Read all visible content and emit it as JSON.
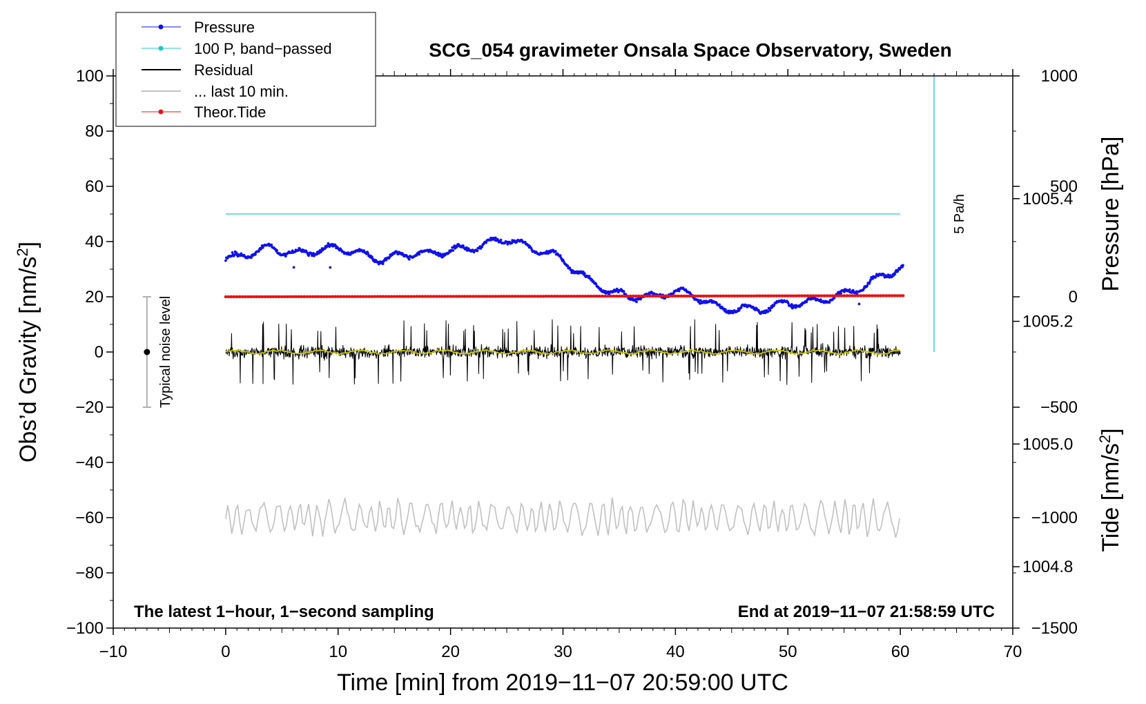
{
  "chart_data": {
    "type": "line",
    "title": "SCG_054 gravimeter Onsala Space Observatory, Sweden",
    "xlabel": "Time [min] from 2019−11−07 20:59:00 UTC",
    "xlim": [
      -10,
      70
    ],
    "x_ticks": [
      -10,
      0,
      10,
      20,
      30,
      40,
      50,
      60,
      70
    ],
    "x_tick_labels": [
      "−10",
      "0",
      "10",
      "20",
      "30",
      "40",
      "50",
      "60",
      "70"
    ],
    "y_left": {
      "label": "Obs’d Gravity [nm/s",
      "label_sup": "2",
      "label_end": "]",
      "lim": [
        -100,
        100
      ],
      "ticks": [
        -100,
        -80,
        -60,
        -40,
        -20,
        0,
        20,
        40,
        60,
        80,
        100
      ],
      "tick_labels": [
        "−100",
        "−80",
        "−60",
        "−40",
        "−20",
        "0",
        "20",
        "40",
        "60",
        "80",
        "100"
      ]
    },
    "y_right_pressure": {
      "label": "Pressure [hPa]",
      "lim": [
        1004.7,
        1005.6
      ],
      "ticks": [
        1004.8,
        1005.0,
        1005.2,
        1005.4
      ],
      "tick_labels": [
        "1004.8",
        "1005.0",
        "1005.2",
        "1005.4"
      ]
    },
    "y_right_tide": {
      "label": "Tide [nm/s",
      "label_sup": "2",
      "label_end": "]",
      "lim": [
        -1500,
        1000
      ],
      "ticks": [
        -1500,
        -1000,
        -500,
        0,
        500,
        1000
      ],
      "tick_labels": [
        "−1500",
        "−1000",
        "−500",
        "0",
        "500",
        "1000"
      ]
    },
    "legend_position": "top-left",
    "legend": [
      {
        "label": "Pressure",
        "color": "#1010ee",
        "marker": "dot"
      },
      {
        "label": "100 P, band−passed",
        "color": "#20c8c8",
        "marker": "dot"
      },
      {
        "label": "Residual",
        "color": "#000000",
        "marker": "line"
      },
      {
        "label": "... last 10 min.",
        "color": "#c0c0c0",
        "marker": "line"
      },
      {
        "label": "Theor.Tide",
        "color": "#ee1010",
        "marker": "dot"
      }
    ],
    "series": [
      {
        "name": "Pressure",
        "axis": "pressure_hPa",
        "color": "#1010ee",
        "x": [
          0,
          2,
          4,
          6,
          8,
          10,
          12,
          14,
          16,
          18,
          20,
          22,
          24,
          25,
          27,
          29,
          30,
          32,
          34,
          36,
          38,
          40,
          42,
          44,
          46,
          48,
          50,
          52,
          54,
          56,
          58,
          60.3
        ],
        "y": [
          1005.3,
          1005.31,
          1005.32,
          1005.31,
          1005.315,
          1005.32,
          1005.31,
          1005.3,
          1005.31,
          1005.31,
          1005.315,
          1005.32,
          1005.33,
          1005.335,
          1005.32,
          1005.31,
          1005.3,
          1005.27,
          1005.25,
          1005.24,
          1005.24,
          1005.25,
          1005.24,
          1005.22,
          1005.22,
          1005.22,
          1005.23,
          1005.23,
          1005.24,
          1005.25,
          1005.27,
          1005.29
        ]
      },
      {
        "name": "100 P, band−passed",
        "axis": "gravity_nm_s2",
        "color": "#20c8c8",
        "x": [
          0,
          60
        ],
        "y": [
          50,
          50
        ]
      },
      {
        "name": "Residual",
        "axis": "gravity_nm_s2",
        "color": "#000000",
        "x_range": [
          0,
          60
        ],
        "center": 0,
        "amplitude_typical": 6,
        "amplitude_max": 12
      },
      {
        "name": "Residual smoothed",
        "axis": "gravity_nm_s2",
        "color": "#c8c800",
        "x_range": [
          0,
          60
        ],
        "center": 0
      },
      {
        "name": "... last 10 min.",
        "axis": "gravity_nm_s2",
        "color": "#c0c0c0",
        "x_range": [
          0,
          60
        ],
        "center": -60,
        "amplitude_typical": 5
      },
      {
        "name": "Theor.Tide",
        "axis": "tide_nm_s2",
        "color": "#ee1010",
        "x": [
          0,
          60.3
        ],
        "y": [
          0,
          5
        ]
      }
    ],
    "noise_bar": {
      "label": "Typical noise level",
      "x": -7,
      "center": 0,
      "low": -20,
      "high": 20
    },
    "rate_bar": {
      "label": "5 Pa/h",
      "x": 63,
      "y_from": 0,
      "y_to": 100,
      "color": "#20c8c8"
    },
    "annotations": {
      "bottom_left": "The latest 1−hour, 1−second sampling",
      "bottom_right": "End at 2019−11−07 21:58:59 UTC"
    }
  }
}
